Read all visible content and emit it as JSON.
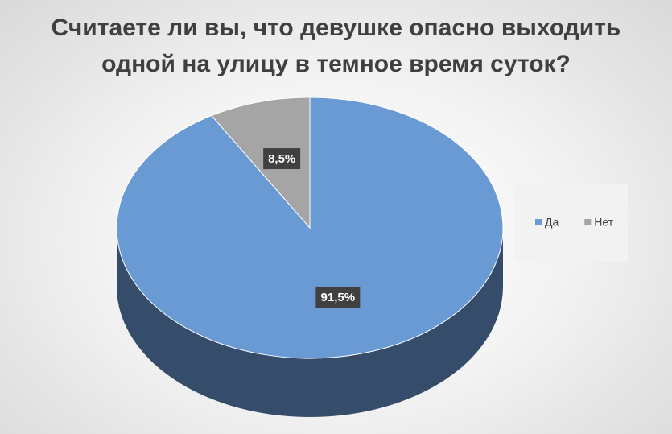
{
  "chart_data": {
    "type": "pie",
    "title": "Считаете ли вы, что девушке опасно выходить одной на улицу в темное время суток?",
    "categories": [
      "Да",
      "Нет"
    ],
    "values": [
      91.5,
      8.5
    ],
    "value_labels": [
      "91,5%",
      "8,5%"
    ],
    "colors": [
      "#6a9ad4",
      "#a5a5a5"
    ],
    "legend": "right"
  }
}
